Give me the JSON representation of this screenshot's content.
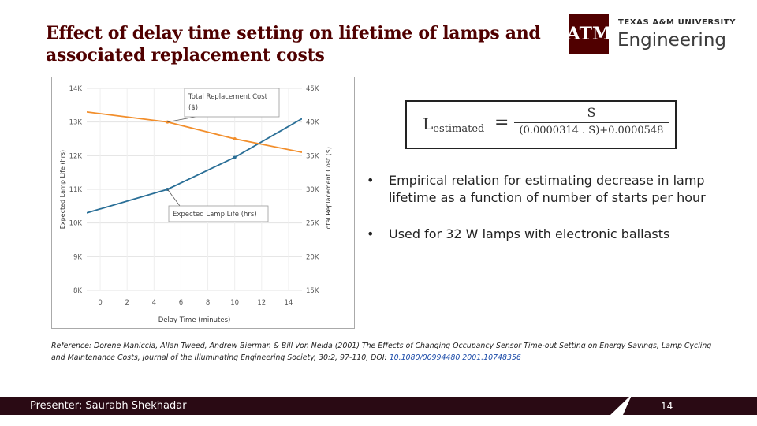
{
  "slide": {
    "title_line1": "Effect of delay time setting on lifetime of lamps and",
    "title_line2": "associated replacement costs",
    "logo": {
      "mark": "ATM",
      "university": "TEXAS A&M UNIVERSITY",
      "college": "Engineering",
      "color": "#500000"
    },
    "formula": {
      "lhs_base": "L",
      "lhs_sub": "estimated",
      "equals": "=",
      "numerator": "S",
      "denominator": "(0.0000314 . S)+0.0000548"
    },
    "bullets": [
      {
        "marker": "•",
        "text": "Empirical relation for estimating decrease in lamp lifetime as a function of number of starts per hour"
      },
      {
        "marker": "•",
        "text": "Used for 32 W lamps with electronic ballasts"
      }
    ],
    "reference": {
      "text": "Reference: Dorene Maniccia, Allan Tweed, Andrew Bierman & Bill Von Neida (2001) The Effects of Changing Occupancy Sensor Time-out Setting on Energy Savings, Lamp Cycling and Maintenance Costs, Journal of the Illuminating Engineering Society, 30:2, 97-110, DOI: ",
      "doi": "10.1080/00994480.2001.10748356"
    },
    "footer": {
      "presenter": "Presenter: Saurabh Shekhadar",
      "page": "14"
    }
  },
  "chart_data": {
    "type": "line",
    "xlabel": "Delay Time (minutes)",
    "ylabel_left": "Expected Lamp Life (hrs)",
    "ylabel_right": "Total Replacement Cost ($)",
    "x_ticks": [
      0,
      2,
      4,
      6,
      8,
      10,
      12,
      14
    ],
    "x_tick_labels": [
      "0",
      "2",
      "4",
      "6",
      "8",
      "10",
      "12",
      "14"
    ],
    "xlim": [
      -1,
      15
    ],
    "y_left_ticks": [
      8000,
      9000,
      10000,
      11000,
      12000,
      13000,
      14000
    ],
    "y_left_tick_labels": [
      "8K",
      "9K",
      "10K",
      "11K",
      "12K",
      "13K",
      "14K"
    ],
    "ylim_left": [
      8000,
      14000
    ],
    "y_right_ticks": [
      15000,
      20000,
      25000,
      30000,
      35000,
      40000,
      45000
    ],
    "y_right_tick_labels": [
      "15K",
      "20K",
      "25K",
      "30K",
      "35K",
      "40K",
      "45K"
    ],
    "ylim_right": [
      15000,
      45000
    ],
    "grid": true,
    "series": [
      {
        "name": "Expected Lamp Life (hrs)",
        "axis": "left",
        "color": "#2a6f97",
        "x": [
          -1,
          5,
          10,
          15
        ],
        "y": [
          10300,
          11000,
          11950,
          13100
        ]
      },
      {
        "name": "Total Replacement Cost ($)",
        "axis": "right",
        "color": "#f28e2b",
        "x": [
          -1,
          5,
          10,
          15
        ],
        "y": [
          41500,
          40000,
          37500,
          35500
        ]
      }
    ],
    "annotations": [
      {
        "text_line1": "Total Replacement Cost",
        "text_line2": "($)",
        "target_series": 1,
        "target_x": 5
      },
      {
        "text_line1": "Expected Lamp Life (hrs)",
        "text_line2": "",
        "target_series": 0,
        "target_x": 5
      }
    ]
  }
}
